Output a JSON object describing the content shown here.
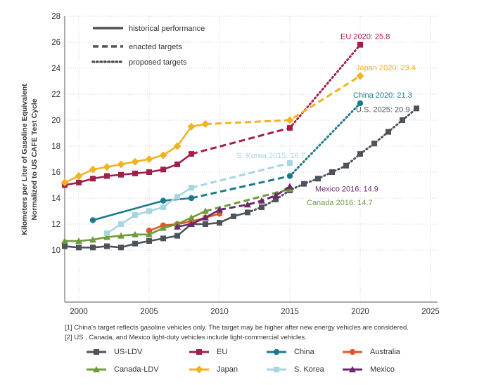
{
  "chart_data": {
    "type": "line",
    "title": "",
    "xlabel": "",
    "ylabel": "Kilometers per Liter of Gasoline Equivalent",
    "ylabel2": "Normalized to US CAFE Test Cycle",
    "xlim": [
      1999,
      2025.5
    ],
    "ylim": [
      6,
      28
    ],
    "x_ticks": [
      2000,
      2005,
      2010,
      2015,
      2020,
      2025
    ],
    "y_ticks": [
      10,
      12,
      14,
      16,
      18,
      20,
      22,
      24,
      26,
      28
    ],
    "grid": true,
    "line_styles": [
      {
        "style": "solid",
        "label": "historical performance"
      },
      {
        "style": "dashed",
        "label": "enacted targets"
      },
      {
        "style": "dotted",
        "label": "proposed targets"
      }
    ],
    "series": [
      {
        "name": "US-LDV",
        "color": "#4d5359",
        "marker": "square",
        "segments": [
          {
            "style": "solid",
            "points": [
              [
                1999,
                10.3
              ],
              [
                2000,
                10.2
              ],
              [
                2001,
                10.2
              ],
              [
                2002,
                10.3
              ],
              [
                2003,
                10.2
              ],
              [
                2004,
                10.5
              ],
              [
                2005,
                10.7
              ],
              [
                2006,
                10.9
              ],
              [
                2007,
                11.1
              ],
              [
                2008,
                12.0
              ],
              [
                2009,
                12.0
              ],
              [
                2010,
                12.1
              ],
              [
                2011,
                12.6
              ],
              [
                2012,
                12.9
              ]
            ]
          },
          {
            "style": "dotted",
            "points": [
              [
                2012,
                12.9
              ],
              [
                2013,
                13.3
              ],
              [
                2014,
                13.9
              ],
              [
                2015,
                14.6
              ],
              [
                2016,
                15.1
              ],
              [
                2017,
                15.5
              ],
              [
                2018,
                16.0
              ],
              [
                2019,
                16.5
              ],
              [
                2020,
                17.4
              ],
              [
                2021,
                18.2
              ],
              [
                2022,
                19.1
              ],
              [
                2023,
                20.0
              ],
              [
                2024,
                20.9
              ]
            ]
          }
        ]
      },
      {
        "name": "EU",
        "color": "#a31f4a",
        "marker": "square",
        "segments": [
          {
            "style": "solid",
            "points": [
              [
                1999,
                15.0
              ],
              [
                2000,
                15.2
              ],
              [
                2001,
                15.5
              ],
              [
                2002,
                15.7
              ],
              [
                2003,
                15.8
              ],
              [
                2004,
                15.9
              ],
              [
                2005,
                16.0
              ],
              [
                2006,
                16.2
              ],
              [
                2007,
                16.6
              ],
              [
                2008,
                17.4
              ]
            ]
          },
          {
            "style": "dashed",
            "points": [
              [
                2008,
                17.4
              ],
              [
                2015,
                19.4
              ]
            ]
          },
          {
            "style": "dotted",
            "points": [
              [
                2015,
                19.4
              ],
              [
                2020,
                25.8
              ]
            ]
          }
        ]
      },
      {
        "name": "China",
        "color": "#1a7a8c",
        "marker": "circle",
        "segments": [
          {
            "style": "solid",
            "points": [
              [
                2001,
                12.3
              ],
              [
                2006,
                13.8
              ],
              [
                2008,
                14.0
              ]
            ]
          },
          {
            "style": "dashed",
            "points": [
              [
                2008,
                14.0
              ],
              [
                2015,
                15.7
              ]
            ]
          },
          {
            "style": "dotted",
            "points": [
              [
                2015,
                15.7
              ],
              [
                2020,
                21.3
              ]
            ]
          }
        ]
      },
      {
        "name": "Australia",
        "color": "#e0572a",
        "marker": "circle",
        "segments": [
          {
            "style": "solid",
            "points": [
              [
                2005,
                11.5
              ],
              [
                2006,
                11.9
              ],
              [
                2007,
                12.0
              ],
              [
                2008,
                12.2
              ],
              [
                2009,
                12.5
              ],
              [
                2010,
                12.8
              ]
            ]
          }
        ]
      },
      {
        "name": "Canada-LDV",
        "color": "#6e9c3a",
        "marker": "triangle",
        "segments": [
          {
            "style": "solid",
            "points": [
              [
                1999,
                10.7
              ],
              [
                2000,
                10.7
              ],
              [
                2001,
                10.8
              ],
              [
                2002,
                11.0
              ],
              [
                2003,
                11.1
              ],
              [
                2004,
                11.2
              ],
              [
                2005,
                11.2
              ],
              [
                2006,
                11.7
              ],
              [
                2007,
                12.0
              ],
              [
                2008,
                12.5
              ],
              [
                2009,
                13.0
              ]
            ]
          },
          {
            "style": "dashed",
            "points": [
              [
                2009,
                13.0
              ],
              [
                2015,
                14.7
              ]
            ]
          }
        ]
      },
      {
        "name": "Japan",
        "color": "#f0b323",
        "marker": "diamond",
        "segments": [
          {
            "style": "solid",
            "points": [
              [
                1999,
                15.2
              ],
              [
                2000,
                15.7
              ],
              [
                2001,
                16.2
              ],
              [
                2002,
                16.4
              ],
              [
                2003,
                16.6
              ],
              [
                2004,
                16.8
              ],
              [
                2005,
                17.0
              ],
              [
                2006,
                17.3
              ],
              [
                2007,
                18.0
              ],
              [
                2008,
                19.5
              ],
              [
                2009,
                19.7
              ]
            ]
          },
          {
            "style": "dashed",
            "points": [
              [
                2009,
                19.7
              ],
              [
                2015,
                20.0
              ],
              [
                2020,
                23.4
              ]
            ]
          }
        ]
      },
      {
        "name": "S. Korea",
        "color": "#a8d5e2",
        "marker": "square",
        "segments": [
          {
            "style": "solid",
            "points": [
              [
                2002,
                11.3
              ],
              [
                2003,
                12.0
              ],
              [
                2004,
                12.7
              ],
              [
                2005,
                13.0
              ],
              [
                2006,
                13.3
              ],
              [
                2007,
                14.1
              ],
              [
                2008,
                14.8
              ]
            ]
          },
          {
            "style": "dashed",
            "points": [
              [
                2008,
                14.8
              ],
              [
                2015,
                16.7
              ]
            ]
          }
        ]
      },
      {
        "name": "Mexico",
        "color": "#6a2a6e",
        "marker": "triangle",
        "segments": [
          {
            "style": "solid",
            "points": [
              [
                2007,
                11.8
              ],
              [
                2008,
                12.0
              ],
              [
                2009,
                12.5
              ],
              [
                2010,
                13.1
              ]
            ]
          },
          {
            "style": "dashed",
            "points": [
              [
                2010,
                13.1
              ],
              [
                2012,
                13.5
              ],
              [
                2013,
                13.8
              ],
              [
                2014,
                14.2
              ],
              [
                2015,
                14.9
              ]
            ]
          }
        ]
      }
    ],
    "annotations": [
      {
        "text": "EU 2020: 25.8",
        "color": "#a31f4a",
        "x": 2020,
        "y": 25.8
      },
      {
        "text": "Japan 2020: 23.4",
        "color": "#f0b323",
        "x": 2020,
        "y": 23.4
      },
      {
        "text": "China 2020: 21.3",
        "color": "#1a7a8c",
        "x": 2020,
        "y": 21.3
      },
      {
        "text": "U.S. 2025: 20.9",
        "color": "#4d5359",
        "x": 2024,
        "y": 20.9
      },
      {
        "text": "S. Korea 2015: 16.7",
        "color": "#a8d5e2",
        "x": 2015,
        "y": 16.7
      },
      {
        "text": "Mexico 2016: 14.9",
        "color": "#6a2a6e",
        "x": 2015,
        "y": 14.9
      },
      {
        "text": "Canada 2016: 14.7",
        "color": "#6e9c3a",
        "x": 2015,
        "y": 14.7
      }
    ],
    "notes": [
      "[1] China's target reflects gasoline vehicles only. The target may be higher after new energy vehicles are considered.",
      "[2] US , Canada, and Mexico light-duty vehicles include light-commercial vehicles."
    ],
    "legend": [
      "US-LDV",
      "EU",
      "China",
      "Australia",
      "Canada-LDV",
      "Japan",
      "S. Korea",
      "Mexico"
    ],
    "legend_placement": "bottom"
  }
}
